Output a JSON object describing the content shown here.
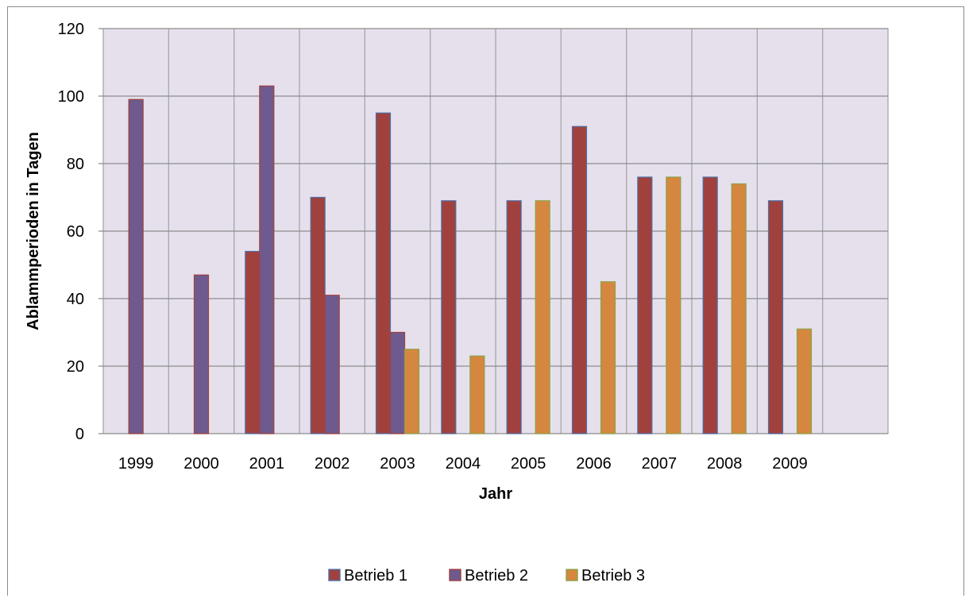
{
  "chart_data": {
    "type": "bar",
    "title": "",
    "xlabel": "Jahr",
    "ylabel": "Ablammperioden in Tagen",
    "ylim": [
      0,
      120
    ],
    "yticks": [
      0,
      20,
      40,
      60,
      80,
      100,
      120
    ],
    "grid": true,
    "legend_position": "bottom",
    "categories": [
      "1999",
      "2000",
      "2001",
      "2002",
      "2003",
      "2004",
      "2005",
      "2006",
      "2007",
      "2008",
      "2009"
    ],
    "x_slots": 12,
    "series": [
      {
        "name": "Betrieb 1",
        "fill": "#a0413e",
        "stroke": "#4f6fa8",
        "values": [
          null,
          null,
          54,
          70,
          95,
          69,
          69,
          91,
          76,
          76,
          69
        ]
      },
      {
        "name": "Betrieb 2",
        "fill": "#6e5a8e",
        "stroke": "#a0413e",
        "values": [
          99,
          47,
          103,
          41,
          30,
          null,
          null,
          null,
          null,
          null,
          null
        ]
      },
      {
        "name": "Betrieb 3",
        "fill": "#d6873f",
        "stroke": "#8aa24a",
        "values": [
          null,
          null,
          null,
          null,
          25,
          23,
          69,
          45,
          76,
          74,
          31
        ]
      }
    ],
    "colors": {
      "plot_background": "#e6e0ec",
      "gridline": "#8c8c8c",
      "legend_marker_border": "#4f6fa8"
    }
  }
}
